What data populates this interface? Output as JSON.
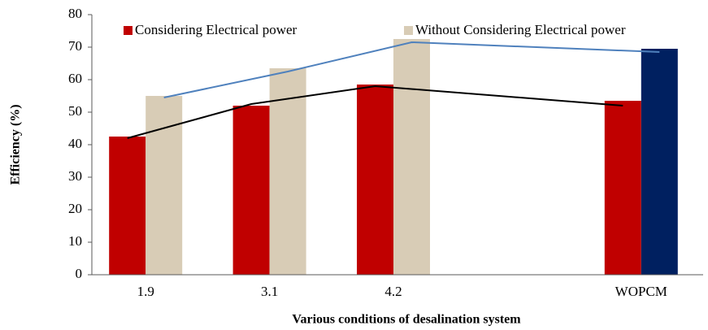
{
  "chart_data": {
    "type": "bar",
    "x_label": "Various conditions of desalination system",
    "y_label": "Efficiency (%)",
    "categories": [
      "1.9",
      "3.1",
      "4.2",
      null,
      "WOPCM"
    ],
    "series": [
      {
        "name": "Considering Electrical power",
        "color": "#c00000",
        "values": [
          42.5,
          52,
          58.5,
          null,
          53.5
        ]
      },
      {
        "name": "Without Considering Electrical power",
        "color": "#d8ccb6",
        "values": [
          55,
          63.5,
          72.5,
          null,
          69.5
        ],
        "colors": [
          "#d8ccb6",
          "#d8ccb6",
          "#d8ccb6",
          null,
          "#002060"
        ]
      }
    ],
    "lines": [
      {
        "color": "#000000",
        "bar_series": 0,
        "x": [
          0,
          1,
          2,
          4
        ],
        "values": [
          42,
          52.5,
          58,
          52
        ]
      },
      {
        "color": "#4f81bd",
        "bar_series": 1,
        "x": [
          0,
          1,
          2,
          4
        ],
        "values": [
          54.5,
          62.5,
          71.5,
          68.5
        ]
      }
    ],
    "ylim": [
      0,
      80
    ],
    "yticks": [
      0,
      10,
      20,
      30,
      40,
      50,
      60,
      70,
      80
    ],
    "grid": false,
    "legend": "top"
  }
}
